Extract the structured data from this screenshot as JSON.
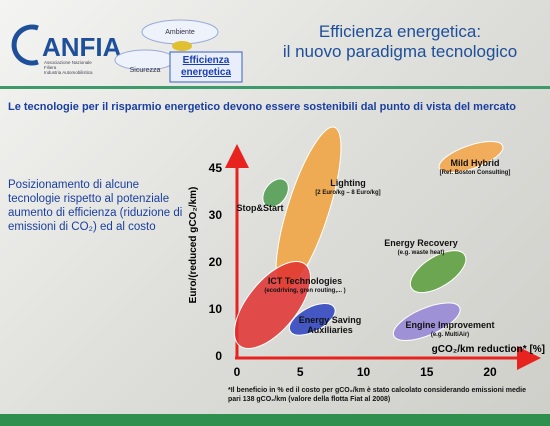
{
  "logo": {
    "name": "ANFIA",
    "tagline": [
      "Associazione Nazionale",
      "Filiera",
      "Industria Automobilistica"
    ]
  },
  "diagram": {
    "top": "Ambiente",
    "left": "Sicurezza",
    "main": "Efficienza energetica"
  },
  "header": {
    "title": [
      "Efficienza energetica:",
      "il nuovo paradigma tecnologico"
    ]
  },
  "subtitle": "Le tecnologie per il risparmio energetico devono essere sostenibili dal punto di vista del mercato",
  "side_text": "Posizionamento di alcune tecnologie rispetto al potenziale aumento di efficienza (riduzione di emissioni di CO₂) ed al costo",
  "chart_data": {
    "type": "range-ellipse",
    "x_label": "gCO₂/km reduction* [%]",
    "y_label": "Euro/(reduced gCO₂/km)",
    "xlim": [
      0,
      23
    ],
    "xticks": [
      0,
      5,
      10,
      15,
      20
    ],
    "ylim": [
      0,
      50
    ],
    "yticks": [
      0,
      10,
      20,
      30,
      45
    ],
    "series": [
      {
        "name": "Lighting",
        "note": "[2 Euro/kg – 8 Euro/kg]",
        "color": "#f2a23c",
        "x": [
          3.6,
          7.7
        ],
        "y": [
          14,
          58
        ]
      },
      {
        "name": "Stop&Start",
        "color": "#4c9a4c",
        "x": [
          2.3,
          3.8
        ],
        "y": [
          33,
          41
        ]
      },
      {
        "name": "Mild Hybrid",
        "note": "[Ref. Boston Consulting]",
        "color": "#f5a446",
        "x": [
          16,
          21
        ],
        "y": [
          45,
          52
        ]
      },
      {
        "name": "Energy Recovery",
        "note": "(e.g. waste heat)",
        "color": "#5a9e3a",
        "x": [
          13.8,
          18
        ],
        "y": [
          14.4,
          21.5
        ]
      },
      {
        "name": "ICT Technologies",
        "note": "(ecodriving, gren routing,... )",
        "color": "#e03030",
        "x": [
          0.2,
          5.4
        ],
        "y": [
          2.2,
          19.5
        ]
      },
      {
        "name": "Energy Saving Auxiliaries",
        "color": "#2a3fc0",
        "x": [
          4.2,
          7.7
        ],
        "y": [
          5.3,
          10.3
        ]
      },
      {
        "name": "Engine Improvement",
        "note": "(e.g. MultiAir)",
        "color": "#9585d6",
        "x": [
          12.4,
          17.6
        ],
        "y": [
          4.3,
          10.3
        ]
      }
    ]
  },
  "footnote": "*Il beneficio in %  ed il costo per gCO₂/km è stato calcolato considerando emissioni medie pari 138 gCO₂/km (valore della flotta Fiat al 2008)"
}
